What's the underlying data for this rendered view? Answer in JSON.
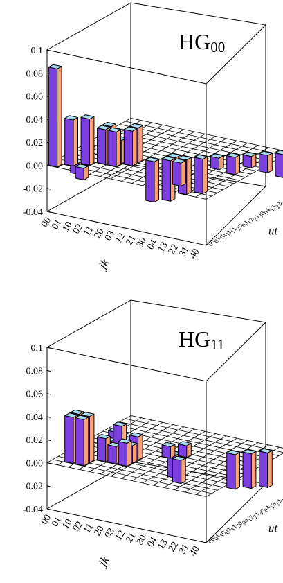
{
  "colors": {
    "bar_front": "#7b3fe0",
    "bar_side": "#f8a277",
    "bar_top": "#a9dcef",
    "bar_edge": "#000000",
    "grid": "#000000",
    "box": "#000000"
  },
  "chart_data": [
    {
      "type": "bar3d",
      "title": "HG",
      "title_sub": "00",
      "zlim": [
        -0.04,
        0.1
      ],
      "z_ticks": [
        "0.1",
        "0.08",
        "0.06",
        "0.04",
        "0.02",
        "0.00",
        "-0.02",
        "-0.04"
      ],
      "x_label": "jk",
      "y_label": "ut",
      "x_categories": [
        "00",
        "01",
        "10",
        "02",
        "11",
        "20",
        "03",
        "12",
        "21",
        "30",
        "04",
        "13",
        "22",
        "31",
        "40"
      ],
      "y_categories": [
        "00",
        "01",
        "10",
        "02",
        "11",
        "20",
        "03",
        "12",
        "21",
        "30",
        "04",
        "13",
        "22",
        "31",
        "40"
      ],
      "bars": [
        {
          "x": "00",
          "y": "00",
          "z": 0.085
        },
        {
          "x": "01",
          "y": "01",
          "z": 0.04
        },
        {
          "x": "10",
          "y": "10",
          "z": 0.04
        },
        {
          "x": "02",
          "y": "02",
          "z": 0.03
        },
        {
          "x": "11",
          "y": "11",
          "z": 0.02
        },
        {
          "x": "20",
          "y": "20",
          "z": 0.03
        },
        {
          "x": "02",
          "y": "11",
          "z": 0.03
        },
        {
          "x": "11",
          "y": "02",
          "z": 0.03
        },
        {
          "x": "20",
          "y": "11",
          "z": 0.03
        },
        {
          "x": "10",
          "y": "01",
          "z": -0.01
        },
        {
          "x": "01",
          "y": "10",
          "z": -0.01
        },
        {
          "x": "03",
          "y": "03",
          "z": -0.035
        },
        {
          "x": "12",
          "y": "12",
          "z": -0.035
        },
        {
          "x": "21",
          "y": "21",
          "z": -0.03
        },
        {
          "x": "30",
          "y": "30",
          "z": -0.03
        },
        {
          "x": "12",
          "y": "21",
          "z": -0.02
        },
        {
          "x": "21",
          "y": "12",
          "z": -0.02
        },
        {
          "x": "13",
          "y": "13",
          "z": -0.015
        },
        {
          "x": "31",
          "y": "31",
          "z": -0.015
        },
        {
          "x": "04",
          "y": "04",
          "z": -0.01
        },
        {
          "x": "22",
          "y": "22",
          "z": -0.01
        },
        {
          "x": "40",
          "y": "40",
          "z": -0.02
        }
      ]
    },
    {
      "type": "bar3d",
      "title": "HG",
      "title_sub": "11",
      "zlim": [
        -0.04,
        0.1
      ],
      "z_ticks": [
        "0.1",
        "0.08",
        "0.06",
        "0.04",
        "0.02",
        "0.00",
        "-0.02",
        "-0.04"
      ],
      "x_label": "jk",
      "y_label": "ut",
      "x_categories": [
        "00",
        "01",
        "10",
        "02",
        "11",
        "20",
        "03",
        "12",
        "21",
        "30",
        "04",
        "13",
        "22",
        "31",
        "40"
      ],
      "y_categories": [
        "00",
        "01",
        "10",
        "02",
        "11",
        "20",
        "03",
        "12",
        "21",
        "30",
        "04",
        "13",
        "22",
        "31",
        "40"
      ],
      "bars": [
        {
          "x": "01",
          "y": "01",
          "z": 0.04
        },
        {
          "x": "10",
          "y": "10",
          "z": 0.04
        },
        {
          "x": "01",
          "y": "10",
          "z": 0.04
        },
        {
          "x": "10",
          "y": "01",
          "z": 0.04
        },
        {
          "x": "11",
          "y": "11",
          "z": 0.03
        },
        {
          "x": "02",
          "y": "02",
          "z": 0.02
        },
        {
          "x": "20",
          "y": "20",
          "z": 0.02
        },
        {
          "x": "02",
          "y": "20",
          "z": 0.02
        },
        {
          "x": "20",
          "y": "02",
          "z": 0.02
        },
        {
          "x": "11",
          "y": "02",
          "z": 0.015
        },
        {
          "x": "11",
          "y": "20",
          "z": 0.015
        },
        {
          "x": "02",
          "y": "11",
          "z": 0.015
        },
        {
          "x": "20",
          "y": "11",
          "z": 0.015
        },
        {
          "x": "12",
          "y": "12",
          "z": 0.01
        },
        {
          "x": "21",
          "y": "21",
          "z": 0.01
        },
        {
          "x": "12",
          "y": "21",
          "z": -0.02
        },
        {
          "x": "21",
          "y": "12",
          "z": -0.02
        },
        {
          "x": "13",
          "y": "13",
          "z": -0.03
        },
        {
          "x": "22",
          "y": "22",
          "z": -0.03
        },
        {
          "x": "31",
          "y": "31",
          "z": -0.03
        }
      ]
    }
  ]
}
